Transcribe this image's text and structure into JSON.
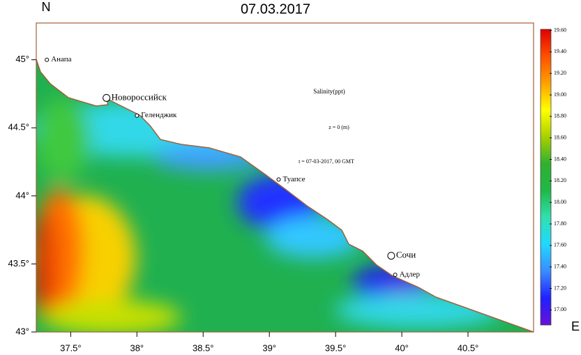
{
  "chart_data": {
    "type": "map",
    "title": "07.03.2017",
    "north_label": "N",
    "east_label": "E",
    "annotations": [
      "Salinity(ppt)",
      "z = 0 (m)",
      "t = 07-03-2017, 00 GMT"
    ],
    "xlim": [
      37.24,
      40.995
    ],
    "ylim": [
      43,
      45.27
    ],
    "xticks": [
      {
        "value": 37.5,
        "label": "37.5°"
      },
      {
        "value": 38,
        "label": "38°"
      },
      {
        "value": 38.5,
        "label": "38.5°"
      },
      {
        "value": 39,
        "label": "39°"
      },
      {
        "value": 39.5,
        "label": "39.5°"
      },
      {
        "value": 40,
        "label": "40°"
      },
      {
        "value": 40.5,
        "label": "40.5°"
      }
    ],
    "yticks": [
      {
        "value": 43,
        "label": "43°"
      },
      {
        "value": 43.5,
        "label": "43.5°"
      },
      {
        "value": 44,
        "label": "44°"
      },
      {
        "value": 44.5,
        "label": "44.5°"
      },
      {
        "value": 45,
        "label": "45°"
      }
    ],
    "cities": [
      {
        "name": "Анапа",
        "lon": 37.32,
        "lat": 45.0
      },
      {
        "name": "Новороссийск",
        "lon": 37.77,
        "lat": 44.72
      },
      {
        "name": "Геленджик",
        "lon": 38.0,
        "lat": 44.59
      },
      {
        "name": "Туапсе",
        "lon": 39.07,
        "lat": 44.12
      },
      {
        "name": "Сочи",
        "lon": 39.92,
        "lat": 43.56
      },
      {
        "name": "Адлер",
        "lon": 39.95,
        "lat": 43.42
      }
    ],
    "colorbar": {
      "lim": [
        16.86,
        19.61
      ],
      "colors": [
        "#6a10d8",
        "#2020ff",
        "#3a8cff",
        "#20d8ff",
        "#30e0b0",
        "#20b848",
        "#30b030",
        "#a8d000",
        "#ffff00",
        "#ffa000",
        "#ff5000",
        "#e00000"
      ],
      "ticks": [
        {
          "value": 17.0,
          "label": "17.00"
        },
        {
          "value": 17.2,
          "label": "17.20"
        },
        {
          "value": 17.4,
          "label": "17.40"
        },
        {
          "value": 17.6,
          "label": "17.60"
        },
        {
          "value": 17.8,
          "label": "17.80"
        },
        {
          "value": 18.0,
          "label": "18.00"
        },
        {
          "value": 18.2,
          "label": "18.20"
        },
        {
          "value": 18.4,
          "label": "18.40"
        },
        {
          "value": 18.6,
          "label": "18.60"
        },
        {
          "value": 18.8,
          "label": "18.80"
        },
        {
          "value": 19.0,
          "label": "19.00"
        },
        {
          "value": 19.2,
          "label": "19.20"
        },
        {
          "value": 19.4,
          "label": "19.40"
        },
        {
          "value": 19.6,
          "label": "19.60"
        }
      ]
    }
  }
}
